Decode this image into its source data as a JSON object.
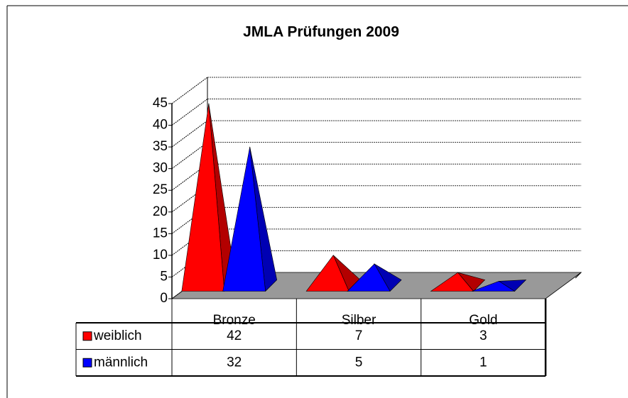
{
  "chart_data": {
    "type": "pyramid3d",
    "title": "JMLA Prüfungen 2009",
    "categories": [
      "Bronze",
      "Silber",
      "Gold"
    ],
    "series": [
      {
        "name": "weiblich",
        "color": "#ff0000",
        "values": [
          42,
          7,
          3
        ]
      },
      {
        "name": "männlich",
        "color": "#0000ff",
        "values": [
          32,
          5,
          1
        ]
      }
    ],
    "ylim": [
      0,
      45
    ],
    "yticks": [
      0,
      5,
      10,
      15,
      20,
      25,
      30,
      35,
      40,
      45
    ],
    "grid": true
  }
}
